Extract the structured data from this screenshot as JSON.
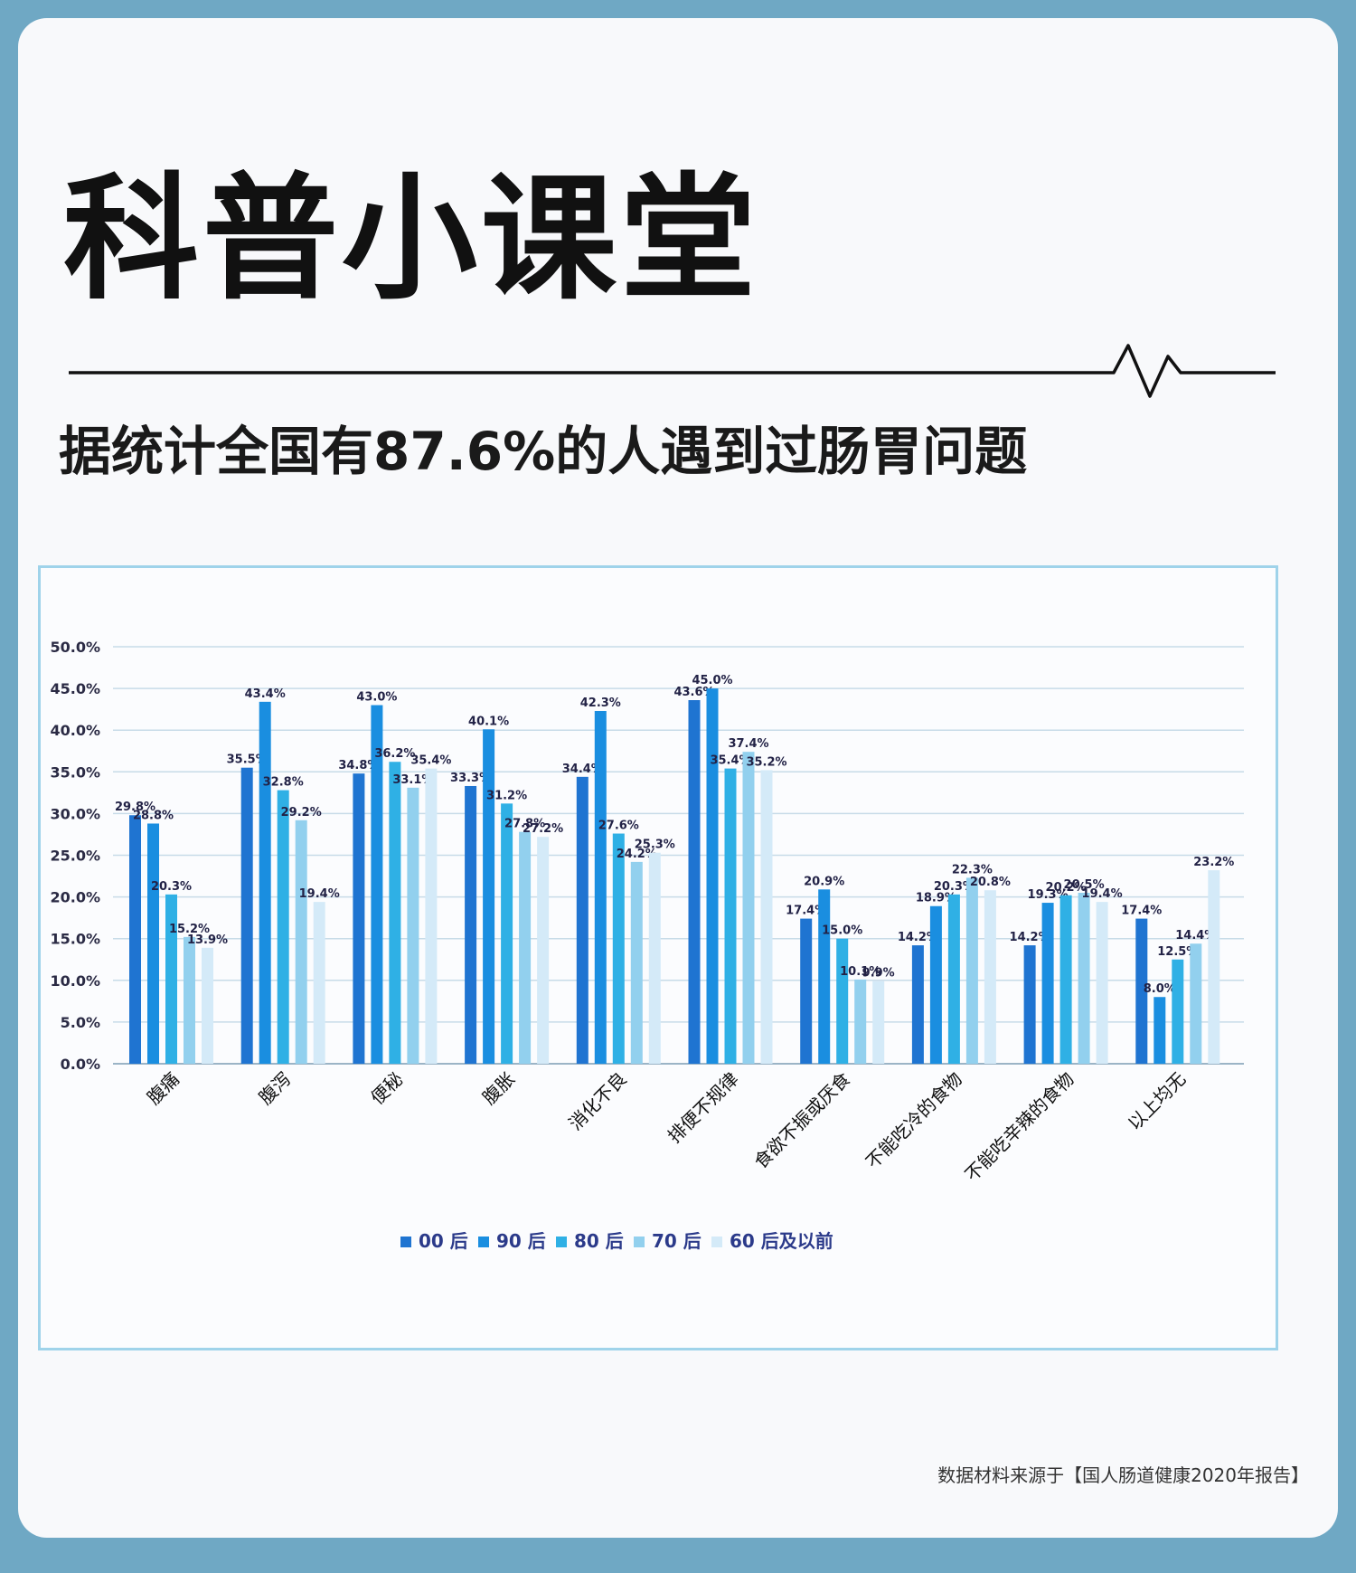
{
  "header": {
    "title": "科普小课堂",
    "subtitle": "据统计全国有87.6%的人遇到过肠胃问题"
  },
  "footer": {
    "source": "数据材料来源于【国人肠道健康2020年报告】"
  },
  "colors": {
    "background": "#6fa8c4",
    "card": "#f8f9fb",
    "chart_border": "#9fd3ea",
    "grid": "#c7dbe8"
  },
  "chart_data": {
    "type": "bar",
    "categories": [
      "腹痛",
      "腹泻",
      "便秘",
      "腹胀",
      "消化不良",
      "排便不规律",
      "食欲不振或厌食",
      "不能吃冷的食物",
      "不能吃辛辣的食物",
      "以上均无"
    ],
    "series": [
      {
        "name": "00 后",
        "color": "#1f74d1",
        "values": [
          29.8,
          35.5,
          34.8,
          33.3,
          34.4,
          43.6,
          17.4,
          14.2,
          14.2,
          17.4
        ]
      },
      {
        "name": "90 后",
        "color": "#1a8ee0",
        "values": [
          28.8,
          43.4,
          43.0,
          40.1,
          42.3,
          45.0,
          20.9,
          18.9,
          19.3,
          8.0
        ]
      },
      {
        "name": "80 后",
        "color": "#2fb0e5",
        "values": [
          20.3,
          32.8,
          36.2,
          31.2,
          27.6,
          35.4,
          15.0,
          20.3,
          20.2,
          12.5
        ]
      },
      {
        "name": "70 后",
        "color": "#92d0ee",
        "values": [
          15.2,
          29.2,
          33.1,
          27.8,
          24.2,
          37.4,
          10.1,
          22.3,
          20.5,
          14.4
        ]
      },
      {
        "name": "60 后及以前",
        "color": "#d4eaf8",
        "values": [
          13.9,
          19.4,
          35.4,
          27.2,
          25.3,
          35.2,
          9.9,
          20.8,
          19.4,
          23.2
        ]
      }
    ],
    "y_ticks": [
      "0.0%",
      "5.0%",
      "10.0%",
      "15.0%",
      "20.0%",
      "25.0%",
      "30.0%",
      "35.0%",
      "40.0%",
      "45.0%",
      "50.0%"
    ],
    "ylim": [
      0,
      50
    ],
    "value_suffix": "%",
    "grid": true,
    "legend_position": "bottom"
  }
}
